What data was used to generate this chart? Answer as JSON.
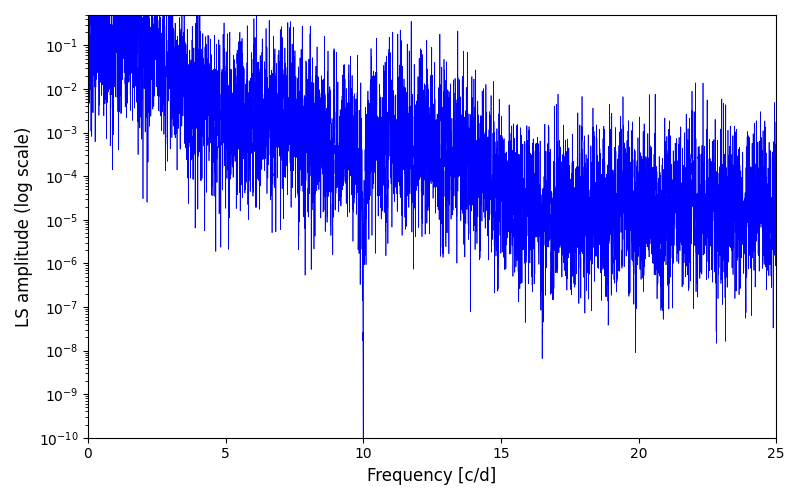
{
  "title": "",
  "xlabel": "Frequency [c/d]",
  "ylabel": "LS amplitude (log scale)",
  "xlim": [
    0,
    25
  ],
  "ylim": [
    1e-10,
    0.5
  ],
  "line_color": "#0000ff",
  "line_width": 0.5,
  "background_color": "#ffffff",
  "figsize": [
    8.0,
    5.0
  ],
  "dpi": 100,
  "seed": 12345,
  "n_points": 8000,
  "freq_max": 25.0
}
